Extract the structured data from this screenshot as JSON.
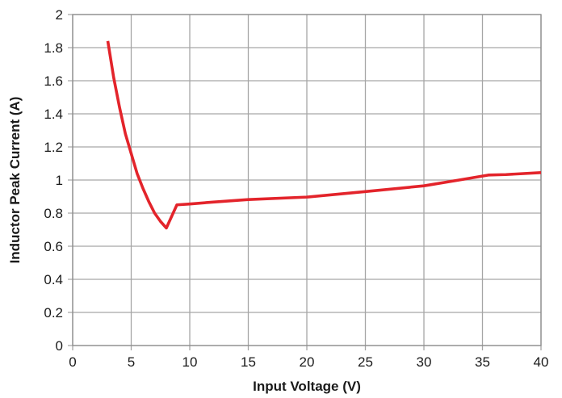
{
  "chart_data": {
    "type": "line",
    "xlabel": "Input Voltage (V)",
    "ylabel": "Inductor Peak Current (A)",
    "xlim": [
      0,
      40
    ],
    "ylim": [
      0,
      2
    ],
    "x_ticks": [
      "0",
      "5",
      "10",
      "15",
      "20",
      "25",
      "30",
      "35",
      "40"
    ],
    "y_ticks": [
      "0",
      "0.2",
      "0.4",
      "0.6",
      "0.8",
      "1",
      "1.2",
      "1.4",
      "1.6",
      "1.8",
      "2"
    ],
    "grid": true,
    "series": [
      {
        "color": "#e3242b",
        "x": [
          3,
          3.5,
          4,
          4.5,
          5,
          5.5,
          6,
          6.5,
          7,
          7.5,
          8,
          8.9,
          10,
          12,
          15,
          20,
          25,
          30,
          33,
          35.5,
          37,
          40
        ],
        "y": [
          1.84,
          1.62,
          1.44,
          1.28,
          1.16,
          1.04,
          0.95,
          0.87,
          0.8,
          0.75,
          0.71,
          0.85,
          0.855,
          0.867,
          0.882,
          0.897,
          0.93,
          0.965,
          1.0,
          1.03,
          1.033,
          1.045
        ]
      }
    ]
  }
}
